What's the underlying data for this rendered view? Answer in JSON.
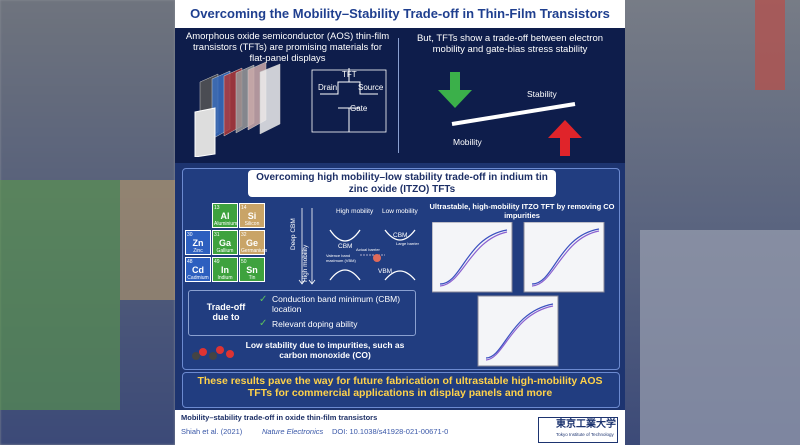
{
  "header": {
    "title": "Overcoming the Mobility–Stability Trade-off in Thin-Film Transistors"
  },
  "top_left": {
    "text": "Amorphous oxide semiconductor (AOS) thin-film transistors (TFTs) are promising materials for flat-panel displays",
    "tft": "TFT",
    "drain": "Drain",
    "source": "Source",
    "gate": "Gate"
  },
  "top_right": {
    "text": "But, TFTs show a trade-off between electron mobility and gate-bias stress stability",
    "stability": "Stability",
    "mobility": "Mobility"
  },
  "middle": {
    "heading": "Overcoming high mobility–low stability trade-off in indium tin zinc oxide (ITZO) TFTs",
    "elements": [
      {
        "number": "13",
        "symbol": "Al",
        "name": "Aluminium"
      },
      {
        "number": "14",
        "symbol": "Si",
        "name": "Silicon"
      },
      {
        "number": "30",
        "symbol": "Zn",
        "name": "Zinc"
      },
      {
        "number": "31",
        "symbol": "Ga",
        "name": "Gallium"
      },
      {
        "number": "32",
        "symbol": "Ge",
        "name": "Germanium"
      },
      {
        "number": "48",
        "symbol": "Cd",
        "name": "Cadmium"
      },
      {
        "number": "49",
        "symbol": "In",
        "name": "Indium"
      },
      {
        "number": "50",
        "symbol": "Sn",
        "name": "Tin"
      }
    ],
    "deep_cbm": "Deep CBM",
    "high_mobility_axis": "High mobility",
    "band": {
      "high": "High mobility",
      "low": "Low mobility",
      "cbm_left": "CBM",
      "cbm_right": "CBM",
      "vbm": "VBM",
      "actual": "Actual barrier",
      "large": "Large barrier",
      "valence": "Valence band maximum (VBM)"
    },
    "plots_title": "Ultrastable, high-mobility ITZO TFT by removing CO impurities",
    "tradeoff": "Trade-off due to",
    "reasons": [
      "Conduction band minimum (CBM) location",
      "Relevant doping ability"
    ],
    "impurity": "Low stability due to impurities, such as carbon monoxide (CO)"
  },
  "conclusion": "These results pave the way for future fabrication of ultrastable high-mobility AOS TFTs for commercial applications in display panels and more",
  "footer": {
    "title": "Mobility–stability trade-off in oxide thin-film transistors",
    "authors": "Shiah et al. (2021)",
    "journal": "Nature Electronics",
    "doi": "DOI: 10.1038/s41928-021-00671-0",
    "logo": "東京工業大学",
    "logo_sub": "Tokyo Institute of Technology"
  }
}
